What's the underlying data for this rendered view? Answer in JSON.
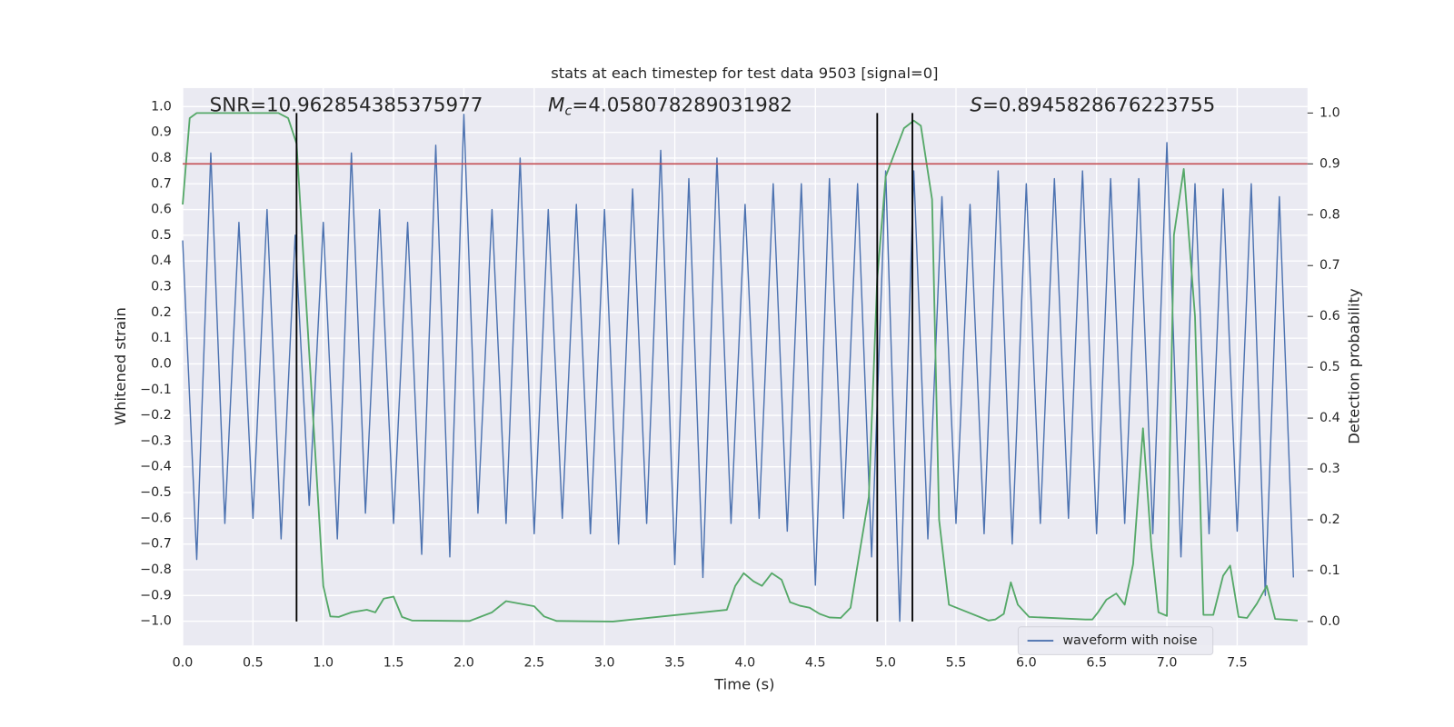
{
  "chart_data": {
    "type": "line",
    "title": "stats at each timestep for test data 9503 [signal=0]",
    "xlabel": "Time (s)",
    "ylabel": "Whitened strain",
    "y2label": "Detection probability",
    "annotations": [
      {
        "text": "SNR=10.962854385375977"
      },
      {
        "symbol": "M",
        "subscript": "c",
        "text": "=4.058078289031982"
      },
      {
        "symbol": "S",
        "text": "=0.8945828676223755"
      }
    ],
    "xlim": [
      0,
      8.0
    ],
    "ylim": [
      -1.094,
      1.072
    ],
    "y2lim": [
      -0.047,
      1.049
    ],
    "xticks": [
      {
        "value": 0,
        "label": "0.0"
      },
      0.5,
      {
        "value": 1,
        "label": "1.0"
      },
      1.5,
      {
        "value": 2,
        "label": "2.0"
      },
      2.5,
      {
        "value": 3,
        "label": "3.0"
      },
      3.5,
      {
        "value": 4,
        "label": "4.0"
      },
      4.5,
      {
        "value": 5,
        "label": "5.0"
      },
      5.5,
      {
        "value": 6,
        "label": "6.0"
      },
      6.5,
      {
        "value": 7,
        "label": "7.0"
      },
      7.5
    ],
    "yticks": [
      {
        "value": -1,
        "label": "−1.0"
      },
      {
        "value": -0.9,
        "label": "−0.9"
      },
      {
        "value": -0.8,
        "label": "−0.8"
      },
      {
        "value": -0.7,
        "label": "−0.7"
      },
      {
        "value": -0.6,
        "label": "−0.6"
      },
      {
        "value": -0.5,
        "label": "−0.5"
      },
      {
        "value": -0.4,
        "label": "−0.4"
      },
      {
        "value": -0.3,
        "label": "−0.3"
      },
      {
        "value": -0.2,
        "label": "−0.2"
      },
      {
        "value": -0.1,
        "label": "−0.1"
      },
      {
        "value": 0,
        "label": "0.0"
      },
      0.1,
      0.2,
      0.3,
      0.4,
      0.5,
      0.6,
      0.7,
      0.8,
      0.9,
      {
        "value": 1,
        "label": "1.0"
      }
    ],
    "y2ticks": [
      {
        "value": 0,
        "label": "0.0"
      },
      0.1,
      0.2,
      0.3,
      0.4,
      0.5,
      0.6,
      0.7,
      0.8,
      0.9,
      {
        "value": 1,
        "label": "1.0"
      }
    ],
    "grid": true,
    "legend": "lower right",
    "series": [
      {
        "name": "waveform with noise",
        "color": "#4c72b0",
        "x": [
          0.0,
          0.1,
          0.2,
          0.3,
          0.4,
          0.5,
          0.6,
          0.7,
          0.8,
          0.9,
          1.0,
          1.1,
          1.2,
          1.3,
          1.4,
          1.5,
          1.6,
          1.7,
          1.8,
          1.9,
          2.0,
          2.1,
          2.2,
          2.3,
          2.4,
          2.5,
          2.6,
          2.7,
          2.8,
          2.9,
          3.0,
          3.1,
          3.2,
          3.3,
          3.4,
          3.5,
          3.6,
          3.7,
          3.8,
          3.9,
          4.0,
          4.1,
          4.2,
          4.3,
          4.4,
          4.5,
          4.6,
          4.7,
          4.8,
          4.9,
          5.0,
          5.1,
          5.2,
          5.3,
          5.4,
          5.5,
          5.6,
          5.7,
          5.8,
          5.9,
          6.0,
          6.1,
          6.2,
          6.3,
          6.4,
          6.5,
          6.6,
          6.7,
          6.8,
          6.9,
          7.0,
          7.1,
          7.2,
          7.3,
          7.4,
          7.5,
          7.6,
          7.7,
          7.8,
          7.9
        ],
        "values": [
          0.48,
          -0.76,
          0.82,
          -0.62,
          0.55,
          -0.6,
          0.6,
          -0.68,
          0.5,
          -0.55,
          0.55,
          -0.68,
          0.82,
          -0.58,
          0.6,
          -0.62,
          0.55,
          -0.74,
          0.85,
          -0.75,
          0.97,
          -0.58,
          0.6,
          -0.62,
          0.8,
          -0.66,
          0.6,
          -0.6,
          0.62,
          -0.66,
          0.6,
          -0.7,
          0.68,
          -0.62,
          0.83,
          -0.78,
          0.72,
          -0.83,
          0.8,
          -0.62,
          0.62,
          -0.6,
          0.7,
          -0.65,
          0.7,
          -0.86,
          0.72,
          -0.6,
          0.7,
          -0.75,
          0.75,
          -1.0,
          0.75,
          -0.68,
          0.65,
          -0.62,
          0.62,
          -0.66,
          0.75,
          -0.7,
          0.7,
          -0.62,
          0.72,
          -0.6,
          0.75,
          -0.66,
          0.72,
          -0.62,
          0.72,
          -0.66,
          0.86,
          -0.75,
          0.7,
          -0.66,
          0.68,
          -0.65,
          0.7,
          -0.9,
          0.65,
          -0.83
        ]
      },
      {
        "color": "#55a868",
        "axis": "y2",
        "x": [
          0.0,
          0.05,
          0.1,
          0.68,
          0.75,
          0.81,
          1.0,
          1.05,
          1.11,
          1.2,
          1.31,
          1.37,
          1.43,
          1.5,
          1.56,
          1.63,
          2.04,
          2.2,
          2.3,
          2.5,
          2.57,
          2.66,
          3.06,
          3.87,
          3.93,
          3.99,
          4.06,
          4.12,
          4.19,
          4.26,
          4.32,
          4.39,
          4.46,
          4.53,
          4.6,
          4.68,
          4.75,
          4.82,
          4.88,
          4.94,
          5.0,
          5.13,
          5.2,
          5.25,
          5.33,
          5.38,
          5.45,
          5.73,
          5.78,
          5.84,
          5.89,
          5.94,
          6.02,
          6.42,
          6.47,
          6.51,
          6.57,
          6.64,
          6.7,
          6.76,
          6.83,
          6.89,
          6.94,
          7.0,
          7.05,
          7.12,
          7.2,
          7.26,
          7.33,
          7.4,
          7.45,
          7.51,
          7.57,
          7.64,
          7.71,
          7.77,
          7.88,
          7.93
        ],
        "values": [
          0.82,
          0.99,
          1.0,
          1.0,
          0.99,
          0.94,
          0.07,
          0.01,
          0.009,
          0.018,
          0.023,
          0.018,
          0.045,
          0.049,
          0.009,
          0.002,
          0.001,
          0.018,
          0.04,
          0.03,
          0.01,
          0.001,
          0.0,
          0.023,
          0.07,
          0.095,
          0.079,
          0.07,
          0.095,
          0.082,
          0.038,
          0.031,
          0.027,
          0.015,
          0.008,
          0.007,
          0.027,
          0.145,
          0.245,
          0.675,
          0.875,
          0.97,
          0.985,
          0.975,
          0.83,
          0.2,
          0.033,
          0.002,
          0.004,
          0.015,
          0.077,
          0.033,
          0.009,
          0.004,
          0.004,
          0.018,
          0.043,
          0.055,
          0.033,
          0.113,
          0.38,
          0.146,
          0.018,
          0.011,
          0.76,
          0.89,
          0.6,
          0.013,
          0.013,
          0.09,
          0.11,
          0.009,
          0.007,
          0.035,
          0.07,
          0.005,
          0.003,
          0.002
        ]
      }
    ],
    "threshold": {
      "value": 0.9,
      "axis": "y2",
      "color": "#c44e52"
    },
    "vlines": {
      "x": [
        0.81,
        4.94,
        5.19
      ],
      "axis": "y2",
      "range": [
        0,
        1
      ],
      "color": "#000000"
    }
  }
}
